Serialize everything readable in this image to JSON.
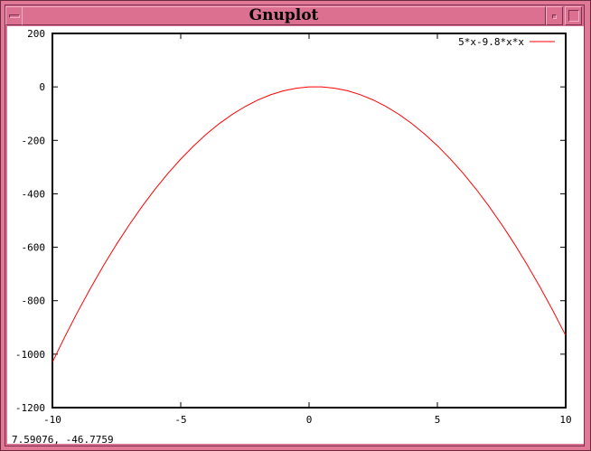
{
  "window": {
    "title": "Gnuplot"
  },
  "status_text": "7.59076, -46.7759",
  "colors": {
    "curve": "#ff0000",
    "titlebar": "#dc7090",
    "frame": "#e07896"
  },
  "icons": {
    "menu": "window-menu-icon",
    "iconify": "minimize-icon",
    "maximize": "maximize-icon"
  },
  "chart_data": {
    "type": "line",
    "title": "",
    "xlabel": "",
    "ylabel": "",
    "xlim": [
      -10,
      10
    ],
    "ylim": [
      -1200,
      200
    ],
    "grid": false,
    "legend_placement": "top-right",
    "x_ticks": [
      "-10",
      "-5",
      "0",
      "5",
      "10"
    ],
    "y_ticks": [
      "200",
      "0",
      "-200",
      "-400",
      "-600",
      "-800",
      "-1000",
      "-1200"
    ],
    "series": [
      {
        "name": "5*x-9.8*x*x",
        "color": "#ff0000",
        "x": [
          -10,
          -9.5,
          -9,
          -8.5,
          -8,
          -7.5,
          -7,
          -6.5,
          -6,
          -5.5,
          -5,
          -4.5,
          -4,
          -3.5,
          -3,
          -2.5,
          -2,
          -1.5,
          -1,
          -0.5,
          0,
          0.5,
          1,
          1.5,
          2,
          2.5,
          3,
          3.5,
          4,
          4.5,
          5,
          5.5,
          6,
          6.5,
          7,
          7.5,
          8,
          8.5,
          9,
          9.5,
          10
        ],
        "y": [
          -1030,
          -931.95,
          -838.8,
          -750.55,
          -667.2,
          -588.75,
          -515.2,
          -446.55,
          -382.8,
          -323.95,
          -270,
          -220.95,
          -176.8,
          -137.55,
          -103.2,
          -73.75,
          -49.2,
          -29.55,
          -14.8,
          -4.95,
          0,
          0.05,
          -4.8,
          -14.55,
          -29.2,
          -48.75,
          -73.2,
          -102.55,
          -136.8,
          -175.95,
          -220,
          -268.95,
          -322.8,
          -381.55,
          -445.2,
          -513.75,
          -587.2,
          -665.55,
          -748.8,
          -836.95,
          -930
        ]
      }
    ]
  }
}
